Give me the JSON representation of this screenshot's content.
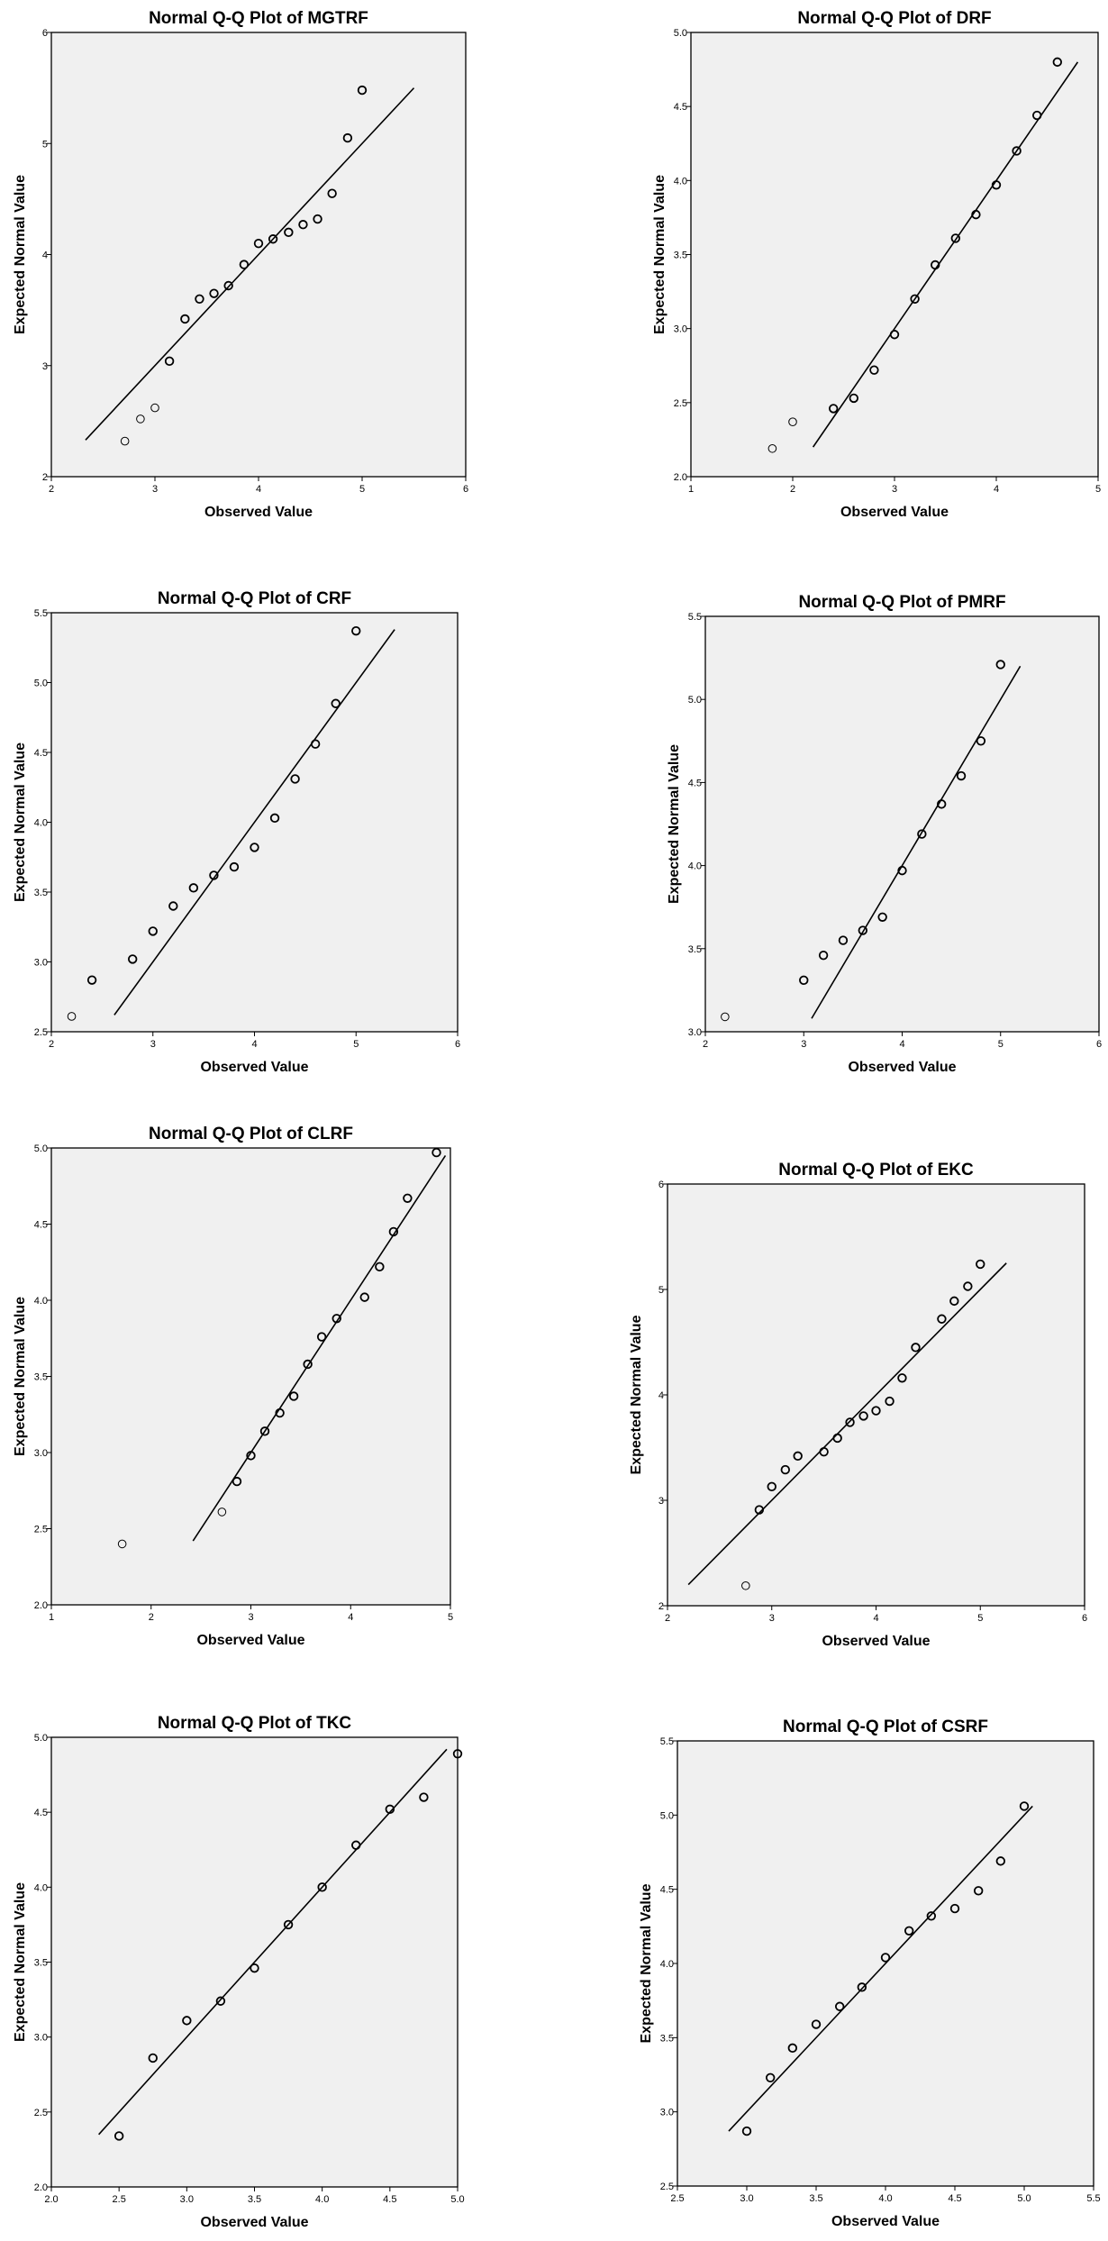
{
  "chart_data": [
    {
      "type": "scatter",
      "title": "Normal Q-Q Plot of MGTRF",
      "xlabel": "Observed Value",
      "ylabel": "Expected Normal Value",
      "xlim": [
        2,
        6
      ],
      "ylim": [
        2,
        6
      ],
      "xticks": [
        "2",
        "3",
        "4",
        "5",
        "6"
      ],
      "yticks": [
        "2",
        "3",
        "4",
        "5",
        "6"
      ],
      "grid": false,
      "reference_line": [
        [
          2.33,
          2.33
        ],
        [
          5.5,
          5.5
        ]
      ],
      "points": [
        [
          2.71,
          2.32
        ],
        [
          2.86,
          2.52
        ],
        [
          3.0,
          2.62
        ],
        [
          3.14,
          3.04
        ],
        [
          3.29,
          3.42
        ],
        [
          3.43,
          3.6
        ],
        [
          3.57,
          3.65
        ],
        [
          3.71,
          3.72
        ],
        [
          3.86,
          3.91
        ],
        [
          4.0,
          4.1
        ],
        [
          4.14,
          4.14
        ],
        [
          4.29,
          4.2
        ],
        [
          4.43,
          4.27
        ],
        [
          4.57,
          4.32
        ],
        [
          4.71,
          4.55
        ],
        [
          4.86,
          5.05
        ],
        [
          5.0,
          5.48
        ]
      ]
    },
    {
      "type": "scatter",
      "title": "Normal Q-Q Plot of DRF",
      "xlabel": "Observed Value",
      "ylabel": "Expected Normal Value",
      "xlim": [
        1,
        5
      ],
      "ylim": [
        2.0,
        5.0
      ],
      "xticks": [
        "1",
        "2",
        "3",
        "4",
        "5"
      ],
      "yticks": [
        "2.0",
        "2.5",
        "3.0",
        "3.5",
        "4.0",
        "4.5",
        "5.0"
      ],
      "grid": false,
      "reference_line": [
        [
          2.2,
          2.2
        ],
        [
          4.8,
          4.8
        ]
      ],
      "points": [
        [
          1.8,
          2.19
        ],
        [
          2.0,
          2.37
        ],
        [
          2.4,
          2.46
        ],
        [
          2.6,
          2.53
        ],
        [
          2.8,
          2.72
        ],
        [
          3.0,
          2.96
        ],
        [
          3.2,
          3.2
        ],
        [
          3.4,
          3.43
        ],
        [
          3.6,
          3.61
        ],
        [
          3.8,
          3.77
        ],
        [
          4.0,
          3.97
        ],
        [
          4.2,
          4.2
        ],
        [
          4.4,
          4.44
        ],
        [
          4.6,
          4.8
        ]
      ]
    },
    {
      "type": "scatter",
      "title": "Normal Q-Q Plot of CRF",
      "xlabel": "Observed Value",
      "ylabel": "Expected Normal Value",
      "xlim": [
        2,
        6
      ],
      "ylim": [
        2.5,
        5.5
      ],
      "xticks": [
        "2",
        "3",
        "4",
        "5",
        "6"
      ],
      "yticks": [
        "2.5",
        "3.0",
        "3.5",
        "4.0",
        "4.5",
        "5.0",
        "5.5"
      ],
      "grid": false,
      "reference_line": [
        [
          2.62,
          2.62
        ],
        [
          5.38,
          5.38
        ]
      ],
      "points": [
        [
          2.2,
          2.61
        ],
        [
          2.4,
          2.87
        ],
        [
          2.8,
          3.02
        ],
        [
          3.0,
          3.22
        ],
        [
          3.2,
          3.4
        ],
        [
          3.4,
          3.53
        ],
        [
          3.6,
          3.62
        ],
        [
          3.8,
          3.68
        ],
        [
          4.0,
          3.82
        ],
        [
          4.2,
          4.03
        ],
        [
          4.4,
          4.31
        ],
        [
          4.6,
          4.56
        ],
        [
          4.8,
          4.85
        ],
        [
          5.0,
          5.37
        ]
      ]
    },
    {
      "type": "scatter",
      "title": "Normal Q-Q Plot of PMRF",
      "xlabel": "Observed Value",
      "ylabel": "Expected Normal Value",
      "xlim": [
        2,
        6
      ],
      "ylim": [
        3.0,
        5.5
      ],
      "xticks": [
        "2",
        "3",
        "4",
        "5",
        "6"
      ],
      "yticks": [
        "3.0",
        "3.5",
        "4.0",
        "4.5",
        "5.0",
        "5.5"
      ],
      "grid": false,
      "reference_line": [
        [
          3.08,
          3.08
        ],
        [
          5.2,
          5.2
        ]
      ],
      "points": [
        [
          2.2,
          3.09
        ],
        [
          3.0,
          3.31
        ],
        [
          3.2,
          3.46
        ],
        [
          3.4,
          3.55
        ],
        [
          3.6,
          3.61
        ],
        [
          3.8,
          3.69
        ],
        [
          4.0,
          3.97
        ],
        [
          4.2,
          4.19
        ],
        [
          4.4,
          4.37
        ],
        [
          4.6,
          4.54
        ],
        [
          4.8,
          4.75
        ],
        [
          5.0,
          5.21
        ]
      ]
    },
    {
      "type": "scatter",
      "title": "Normal Q-Q Plot of CLRF",
      "xlabel": "Observed Value",
      "ylabel": "Expected Normal Value",
      "xlim": [
        1,
        5
      ],
      "ylim": [
        2.0,
        5.0
      ],
      "xticks": [
        "1",
        "2",
        "3",
        "4",
        "5"
      ],
      "yticks": [
        "2.0",
        "2.5",
        "3.0",
        "3.5",
        "4.0",
        "4.5",
        "5.0"
      ],
      "grid": false,
      "reference_line": [
        [
          2.42,
          2.42
        ],
        [
          4.95,
          4.95
        ]
      ],
      "points": [
        [
          1.71,
          2.4
        ],
        [
          2.71,
          2.61
        ],
        [
          2.86,
          2.81
        ],
        [
          3.0,
          2.98
        ],
        [
          3.14,
          3.14
        ],
        [
          3.29,
          3.26
        ],
        [
          3.43,
          3.37
        ],
        [
          3.57,
          3.58
        ],
        [
          3.71,
          3.76
        ],
        [
          3.86,
          3.88
        ],
        [
          4.14,
          4.02
        ],
        [
          4.29,
          4.22
        ],
        [
          4.43,
          4.45
        ],
        [
          4.57,
          4.67
        ],
        [
          4.86,
          4.97
        ]
      ]
    },
    {
      "type": "scatter",
      "title": "Normal Q-Q Plot of EKC",
      "xlabel": "Observed Value",
      "ylabel": "Expected Normal Value",
      "xlim": [
        2,
        6
      ],
      "ylim": [
        2,
        6
      ],
      "xticks": [
        "2",
        "3",
        "4",
        "5",
        "6"
      ],
      "yticks": [
        "2",
        "3",
        "4",
        "5",
        "6"
      ],
      "grid": false,
      "reference_line": [
        [
          2.2,
          2.2
        ],
        [
          5.25,
          5.25
        ]
      ],
      "points": [
        [
          2.75,
          2.19
        ],
        [
          2.88,
          2.91
        ],
        [
          3.0,
          3.13
        ],
        [
          3.13,
          3.29
        ],
        [
          3.25,
          3.42
        ],
        [
          3.5,
          3.46
        ],
        [
          3.63,
          3.59
        ],
        [
          3.75,
          3.74
        ],
        [
          3.88,
          3.8
        ],
        [
          4.0,
          3.85
        ],
        [
          4.13,
          3.94
        ],
        [
          4.25,
          4.16
        ],
        [
          4.38,
          4.45
        ],
        [
          4.63,
          4.72
        ],
        [
          4.75,
          4.89
        ],
        [
          4.88,
          5.03
        ],
        [
          5.0,
          5.24
        ]
      ]
    },
    {
      "type": "scatter",
      "title": "Normal Q-Q Plot of TKC",
      "xlabel": "Observed Value",
      "ylabel": "Expected Normal Value",
      "xlim": [
        2.0,
        5.0
      ],
      "ylim": [
        2.0,
        5.0
      ],
      "xticks": [
        "2.0",
        "2.5",
        "3.0",
        "3.5",
        "4.0",
        "4.5",
        "5.0"
      ],
      "yticks": [
        "2.0",
        "2.5",
        "3.0",
        "3.5",
        "4.0",
        "4.5",
        "5.0"
      ],
      "grid": false,
      "reference_line": [
        [
          2.35,
          2.35
        ],
        [
          4.92,
          4.92
        ]
      ],
      "points": [
        [
          2.5,
          2.34
        ],
        [
          2.75,
          2.86
        ],
        [
          3.0,
          3.11
        ],
        [
          3.25,
          3.24
        ],
        [
          3.5,
          3.46
        ],
        [
          3.75,
          3.75
        ],
        [
          4.0,
          4.0
        ],
        [
          4.25,
          4.28
        ],
        [
          4.5,
          4.52
        ],
        [
          4.75,
          4.6
        ],
        [
          5.0,
          4.89
        ]
      ]
    },
    {
      "type": "scatter",
      "title": "Normal Q-Q Plot of CSRF",
      "xlabel": "Observed Value",
      "ylabel": "Expected Normal Value",
      "xlim": [
        2.5,
        5.5
      ],
      "ylim": [
        2.5,
        5.5
      ],
      "xticks": [
        "2.5",
        "3.0",
        "3.5",
        "4.0",
        "4.5",
        "5.0",
        "5.5"
      ],
      "yticks": [
        "2.5",
        "3.0",
        "3.5",
        "4.0",
        "4.5",
        "5.0",
        "5.5"
      ],
      "grid": false,
      "reference_line": [
        [
          2.87,
          2.87
        ],
        [
          5.06,
          5.06
        ]
      ],
      "points": [
        [
          3.0,
          2.87
        ],
        [
          3.17,
          3.23
        ],
        [
          3.33,
          3.43
        ],
        [
          3.5,
          3.59
        ],
        [
          3.67,
          3.71
        ],
        [
          3.83,
          3.84
        ],
        [
          4.0,
          4.04
        ],
        [
          4.17,
          4.22
        ],
        [
          4.33,
          4.32
        ],
        [
          4.5,
          4.37
        ],
        [
          4.67,
          4.49
        ],
        [
          4.83,
          4.69
        ],
        [
          5.0,
          5.06
        ]
      ]
    }
  ]
}
